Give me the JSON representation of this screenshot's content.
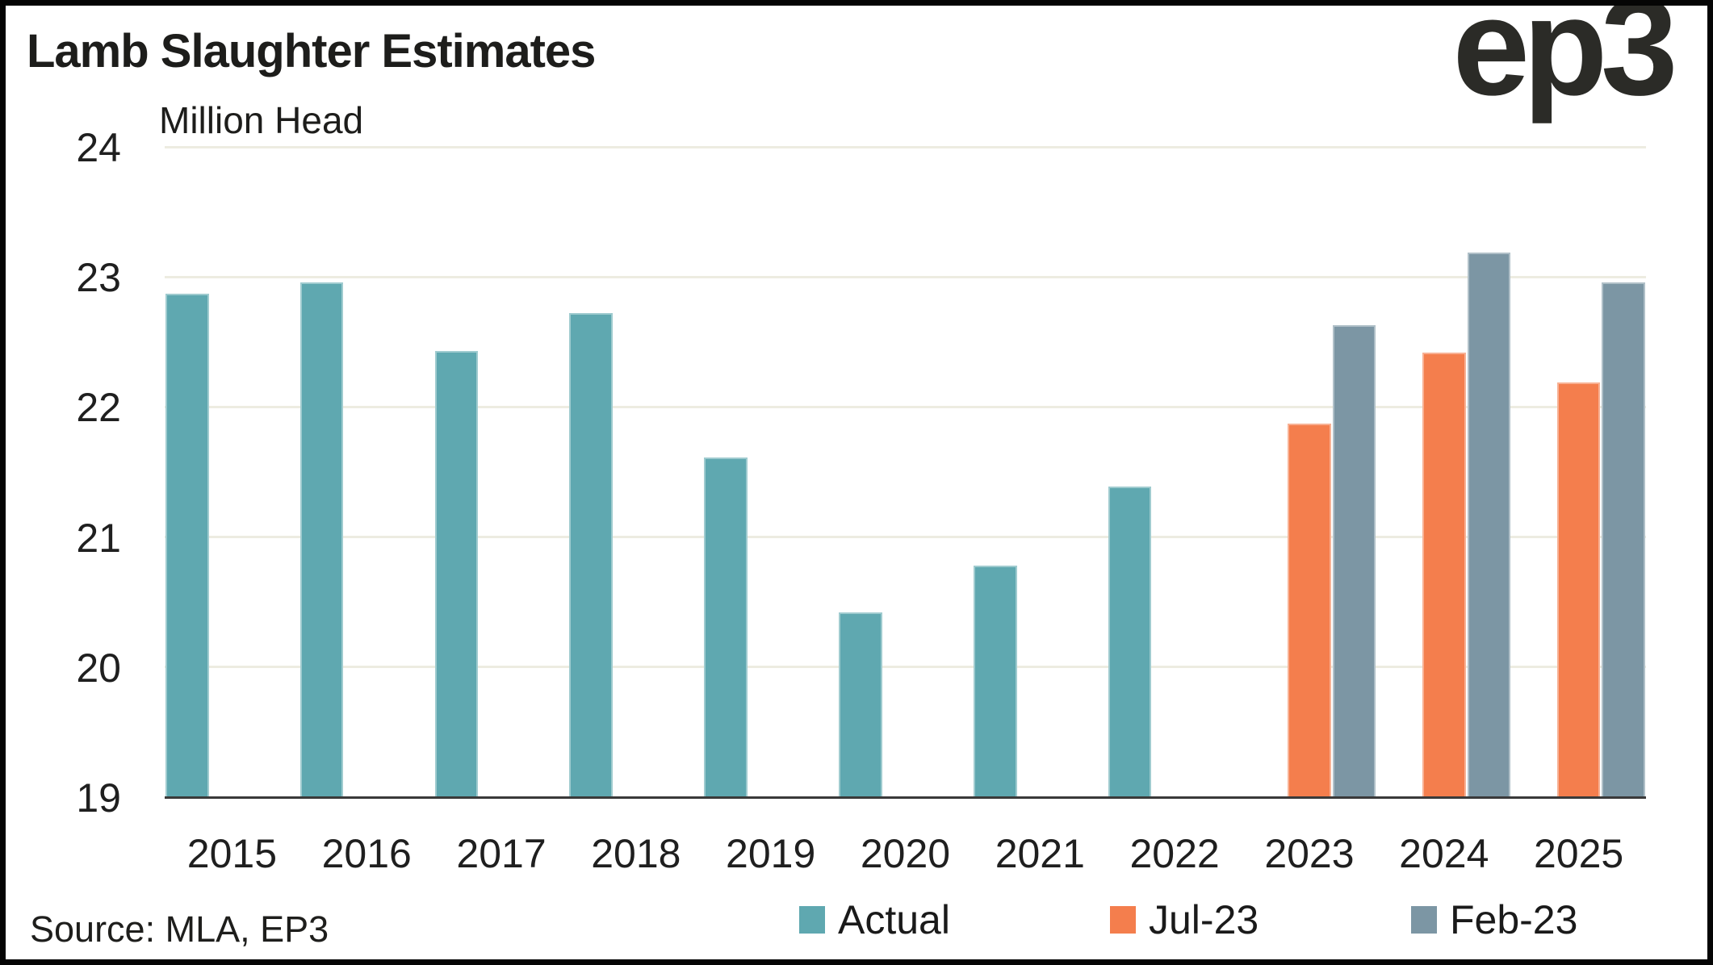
{
  "header": {
    "title": "Lamb Slaughter Estimates",
    "axis_title": "Million Head",
    "logo_text": "ep3"
  },
  "footer": {
    "source": "Source: MLA, EP3"
  },
  "colors": {
    "actual": "#5FA8B0",
    "jul_23": "#F47E4D",
    "feb_23": "#7C96A4",
    "gridline": "#EDECE1",
    "axis_line": "#3A3A3A",
    "text": "#1E1E1C",
    "frame": "#050505",
    "background": "#FFFFFF"
  },
  "chart_data": {
    "type": "bar",
    "title": "Lamb Slaughter Estimates",
    "ylabel": "Million Head",
    "xlabel": "",
    "grid": true,
    "legend_position": "bottom",
    "ylim": [
      19,
      24
    ],
    "yticks": [
      24,
      23,
      22,
      21,
      20,
      19
    ],
    "categories": [
      "2015",
      "2016",
      "2017",
      "2018",
      "2019",
      "2020",
      "2021",
      "2022",
      "2023",
      "2024",
      "2025"
    ],
    "series": [
      {
        "name": "Actual",
        "color": "#5FA8B0",
        "values": [
          22.87,
          22.96,
          22.43,
          22.72,
          21.61,
          20.42,
          20.78,
          21.39,
          null,
          null,
          null
        ]
      },
      {
        "name": "Jul-23",
        "color": "#F47E4D",
        "values": [
          null,
          null,
          null,
          null,
          null,
          null,
          null,
          null,
          21.87,
          22.42,
          22.19
        ]
      },
      {
        "name": "Feb-23",
        "color": "#7C96A4",
        "values": [
          null,
          null,
          null,
          null,
          null,
          null,
          null,
          null,
          22.63,
          23.19,
          22.96
        ]
      }
    ]
  }
}
